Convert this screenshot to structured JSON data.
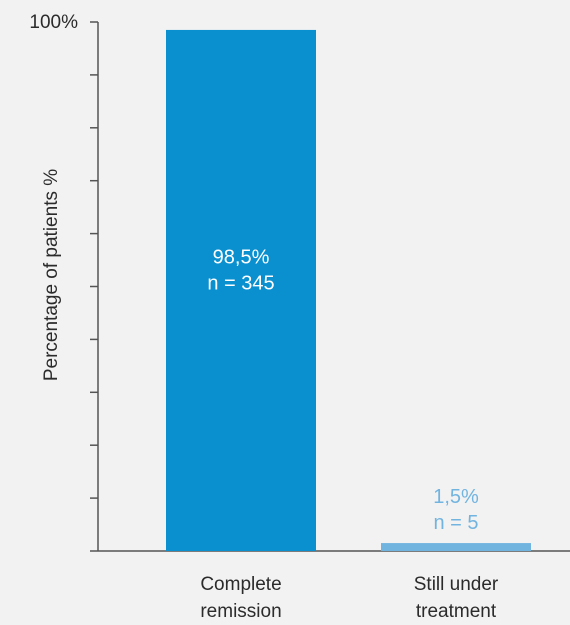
{
  "chart_data": {
    "type": "bar",
    "categories": [
      [
        "Complete",
        "remission"
      ],
      [
        "Still under",
        "treatment"
      ]
    ],
    "values": [
      98.5,
      1.5
    ],
    "data_labels": [
      [
        "98,5%",
        "n = 345"
      ],
      [
        "1,5%",
        "n = 5"
      ]
    ],
    "ylabel": "Percentage of patients %",
    "ytick_label": "100%",
    "ylim": [
      0,
      100
    ],
    "yticks": [
      0,
      10,
      20,
      30,
      40,
      50,
      60,
      70,
      80,
      90,
      100
    ],
    "grid": false,
    "colors": {
      "bar_1": "#0a8fcf",
      "bar_2": "#72b4e0",
      "label_on_bar": "#ffffff",
      "label_above_bar": "#72b4e0",
      "axis": "#555555"
    }
  }
}
